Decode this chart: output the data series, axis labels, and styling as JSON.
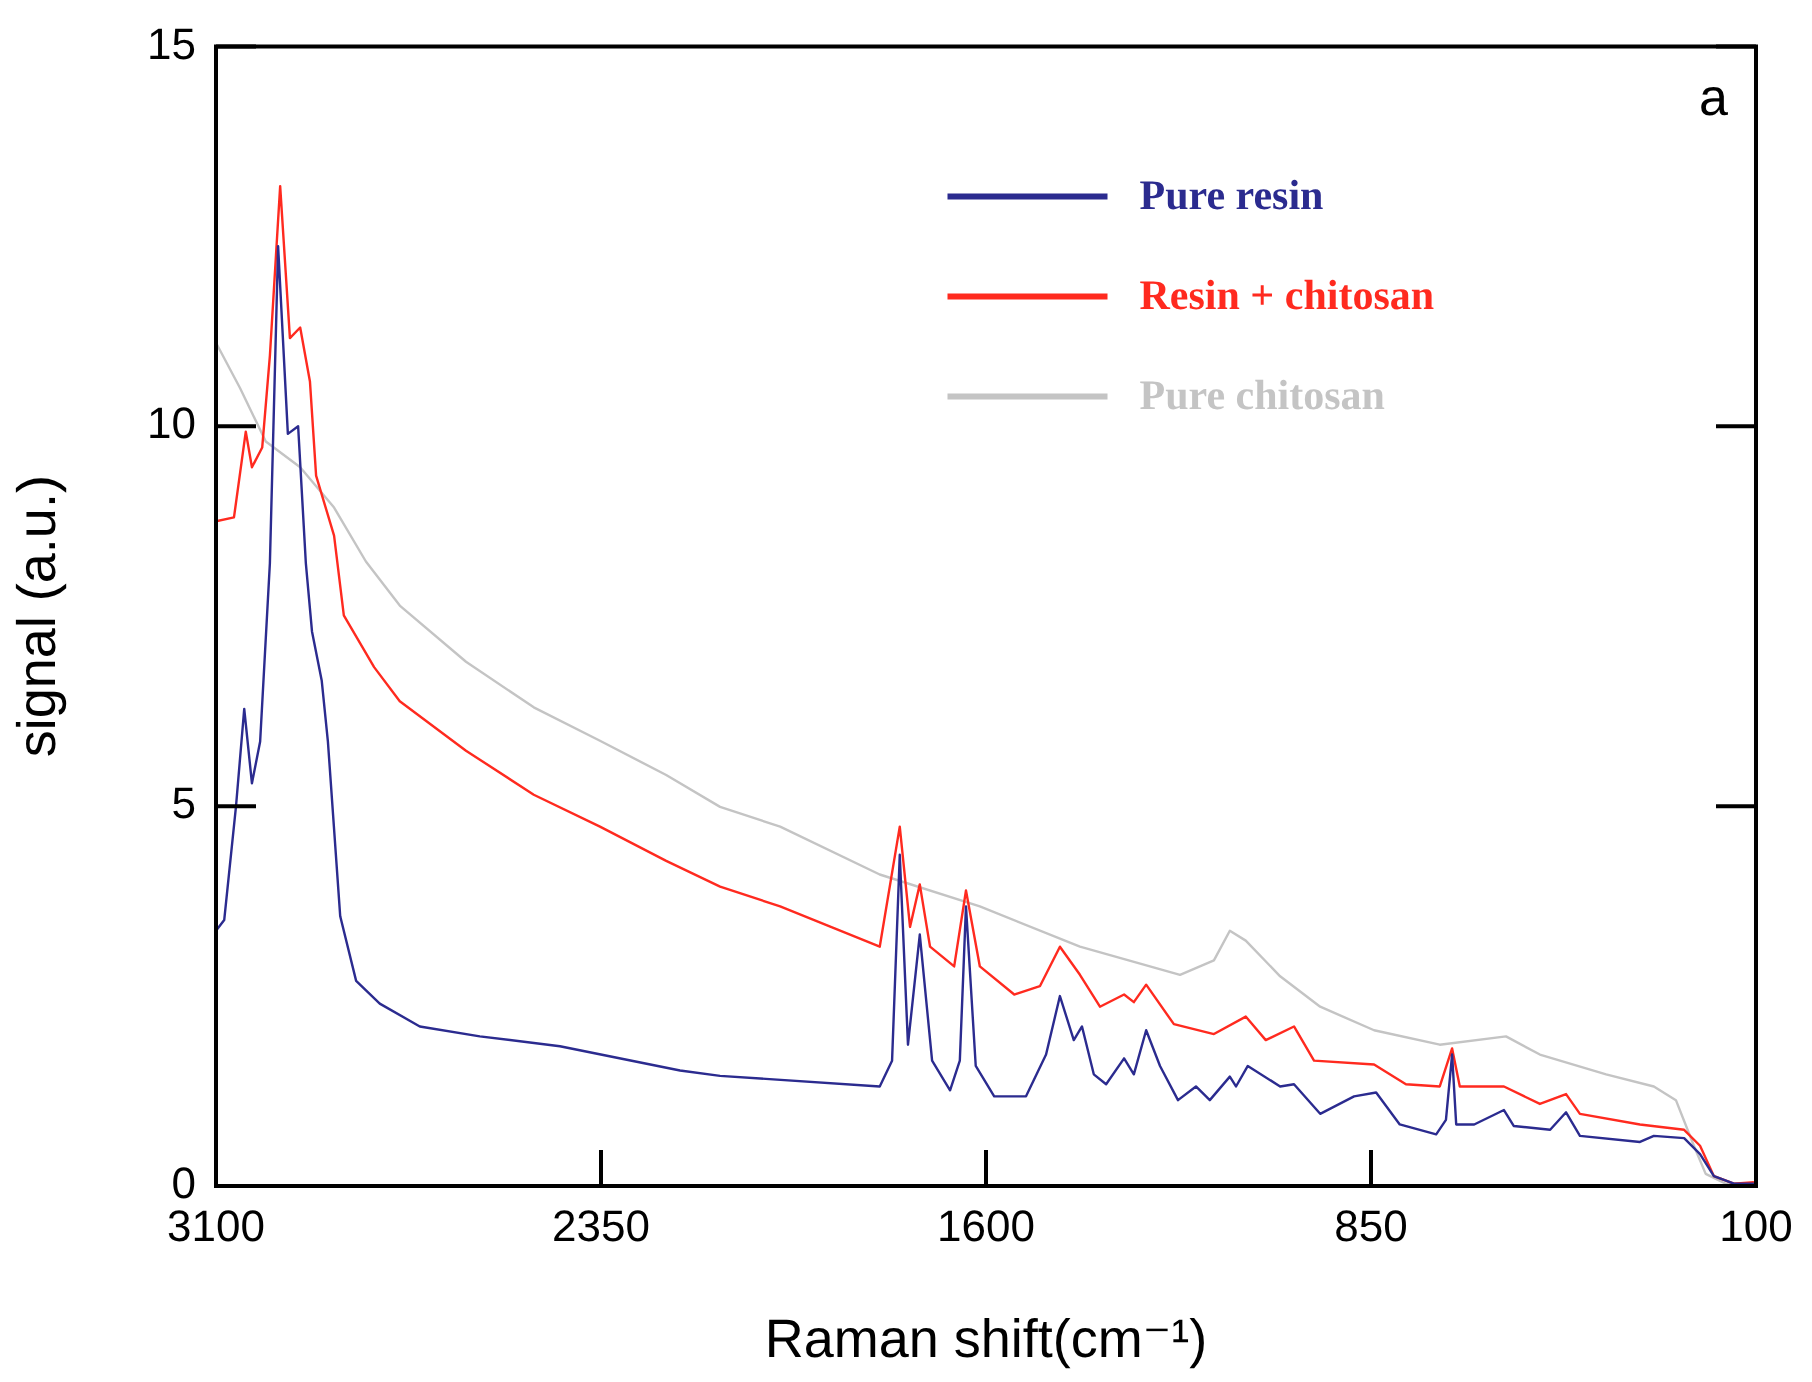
{
  "chart_data": {
    "type": "line",
    "xlabel": "Raman shift(cm⁻¹)",
    "ylabel": "signal (a.u.)",
    "annotations": [
      "a"
    ],
    "xlim": [
      3100,
      100
    ],
    "xticks": [
      3100,
      2350,
      1600,
      850,
      100
    ],
    "ylim": [
      0,
      15
    ],
    "yticks": [
      0,
      5,
      10,
      15
    ],
    "grid": false,
    "legend": "top right",
    "marker": "none",
    "line_style": "solid",
    "series": [
      {
        "name": "Pure resin",
        "color": "#2b2b8f",
        "x": [
          3100,
          3084,
          3061,
          3045,
          3030,
          3014,
          2995,
          2979,
          2960,
          2940,
          2925,
          2913,
          2894,
          2882,
          2858,
          2827,
          2781,
          2703,
          2586,
          2430,
          2196,
          2118,
          1807,
          1783,
          1768,
          1752,
          1729,
          1705,
          1670,
          1651,
          1639,
          1620,
          1584,
          1522,
          1483,
          1456,
          1429,
          1413,
          1390,
          1366,
          1331,
          1312,
          1288,
          1261,
          1226,
          1191,
          1164,
          1125,
          1113,
          1090,
          1027,
          1000,
          949,
          883,
          840,
          794,
          723,
          704,
          692,
          684,
          649,
          591,
          572,
          501,
          470,
          443,
          326,
          299,
          240,
          209,
          182,
          143,
          104
        ],
        "values": [
          3.36,
          3.5,
          5.0,
          6.28,
          5.3,
          5.85,
          8.2,
          12.37,
          9.9,
          10.0,
          8.2,
          7.3,
          6.65,
          5.85,
          3.55,
          2.7,
          2.4,
          2.1,
          1.97,
          1.84,
          1.52,
          1.45,
          1.31,
          1.65,
          4.36,
          1.86,
          3.31,
          1.65,
          1.26,
          1.65,
          3.68,
          1.58,
          1.18,
          1.18,
          1.73,
          2.5,
          1.92,
          2.1,
          1.47,
          1.34,
          1.68,
          1.47,
          2.05,
          1.58,
          1.13,
          1.31,
          1.13,
          1.44,
          1.31,
          1.58,
          1.31,
          1.34,
          0.95,
          1.18,
          1.23,
          0.81,
          0.68,
          0.87,
          1.73,
          0.81,
          0.81,
          1.0,
          0.79,
          0.74,
          0.97,
          0.66,
          0.58,
          0.66,
          0.63,
          0.42,
          0.13,
          0.03,
          0.03
        ]
      },
      {
        "name": "Resin + chitosan",
        "color": "#ff2a1f",
        "x": [
          3100,
          3065,
          3042,
          3030,
          3010,
          2995,
          2975,
          2956,
          2936,
          2917,
          2905,
          2870,
          2851,
          2792,
          2742,
          2613,
          2481,
          2352,
          2223,
          2118,
          2001,
          1807,
          1768,
          1748,
          1729,
          1709,
          1662,
          1639,
          1612,
          1545,
          1495,
          1456,
          1417,
          1378,
          1331,
          1312,
          1288,
          1234,
          1156,
          1094,
          1055,
          1000,
          961,
          844,
          782,
          716,
          692,
          677,
          591,
          521,
          470,
          443,
          326,
          240,
          209,
          182,
          143,
          104
        ],
        "values": [
          8.75,
          8.8,
          9.93,
          9.46,
          9.72,
          10.93,
          13.16,
          11.16,
          11.3,
          10.59,
          9.35,
          8.56,
          7.51,
          6.83,
          6.38,
          5.73,
          5.15,
          4.73,
          4.28,
          3.94,
          3.68,
          3.15,
          4.73,
          3.41,
          3.97,
          3.15,
          2.89,
          3.89,
          2.89,
          2.52,
          2.63,
          3.15,
          2.78,
          2.36,
          2.52,
          2.42,
          2.65,
          2.13,
          2.0,
          2.23,
          1.92,
          2.1,
          1.65,
          1.6,
          1.34,
          1.31,
          1.81,
          1.31,
          1.31,
          1.08,
          1.21,
          0.95,
          0.81,
          0.74,
          0.53,
          0.13,
          0.03,
          0.05
        ]
      },
      {
        "name": "Pure chitosan",
        "color": "#c4c4c4",
        "x": [
          3100,
          3053,
          3003,
          2936,
          2870,
          2808,
          2742,
          2613,
          2481,
          2352,
          2223,
          2118,
          2001,
          1807,
          1612,
          1417,
          1222,
          1156,
          1125,
          1094,
          1027,
          949,
          844,
          716,
          587,
          521,
          392,
          299,
          256,
          221,
          198,
          159,
          104
        ],
        "values": [
          11.1,
          10.5,
          9.8,
          9.46,
          8.93,
          8.22,
          7.64,
          6.9,
          6.3,
          5.86,
          5.41,
          4.99,
          4.73,
          4.1,
          3.68,
          3.15,
          2.78,
          2.97,
          3.36,
          3.23,
          2.76,
          2.36,
          2.05,
          1.86,
          1.97,
          1.73,
          1.47,
          1.31,
          1.13,
          0.53,
          0.16,
          0.03,
          0.03
        ]
      }
    ]
  }
}
